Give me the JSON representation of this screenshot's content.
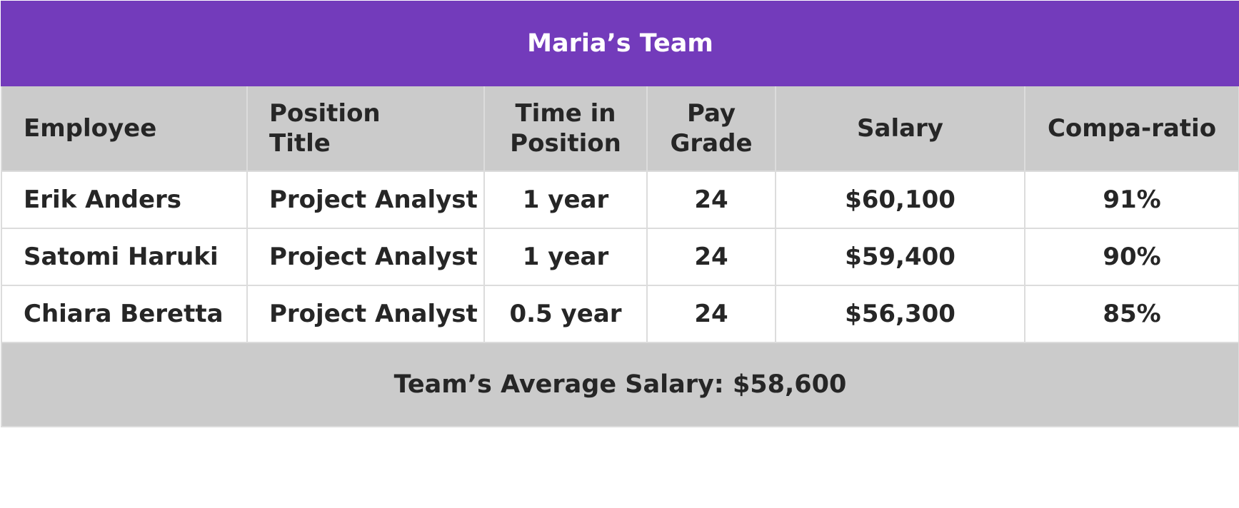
{
  "title": "Maria’s Team",
  "columns": [
    {
      "lines": [
        "Employee"
      ]
    },
    {
      "lines": [
        "Position",
        "Title"
      ]
    },
    {
      "lines": [
        "Time in",
        "Position"
      ]
    },
    {
      "lines": [
        "Pay",
        "Grade"
      ]
    },
    {
      "lines": [
        "Salary"
      ]
    },
    {
      "lines": [
        "Compa-ratio"
      ]
    }
  ],
  "rows": [
    {
      "employee": "Erik Anders",
      "position": "Project Analyst",
      "time": "1 year",
      "grade": "24",
      "salary": "$60,100",
      "compa": "91%"
    },
    {
      "employee": "Satomi Haruki",
      "position": "Project Analyst",
      "time": "1 year",
      "grade": "24",
      "salary": "$59,400",
      "compa": "90%"
    },
    {
      "employee": "Chiara Beretta",
      "position": "Project Analyst",
      "time": "0.5 year",
      "grade": "24",
      "salary": "$56,300",
      "compa": "85%"
    }
  ],
  "footer": "Team’s Average Salary: $58,600",
  "colors": {
    "title_background": "#733bbb",
    "title_text": "#ffffff",
    "header_background": "#cbcbcb",
    "body_background": "#ffffff",
    "text": "#262626",
    "grid_line": "#dcdcdc"
  }
}
